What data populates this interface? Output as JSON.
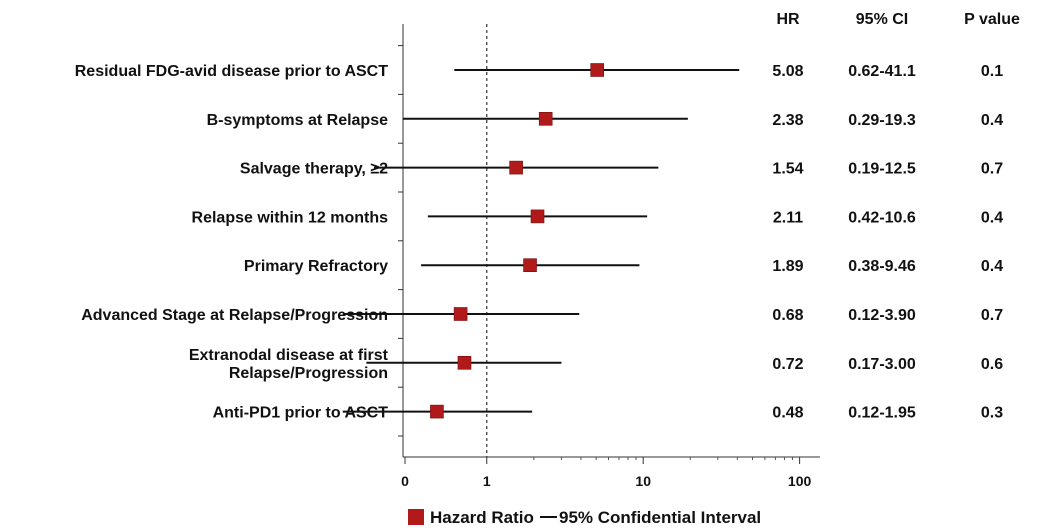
{
  "chart_data": {
    "type": "forest",
    "title": "",
    "xlabel": "",
    "x_scale": "log",
    "xlim": [
      0.3,
      120
    ],
    "x_ticks": [
      {
        "value": 0.3,
        "label": "0"
      },
      {
        "value": 1,
        "label": "1"
      },
      {
        "value": 10,
        "label": "10"
      },
      {
        "value": 100,
        "label": "100"
      }
    ],
    "reference_line": 1,
    "column_headers": {
      "hr": "HR",
      "ci": "95%  CI",
      "p": "P value"
    },
    "rows": [
      {
        "label": [
          "Residual FDG-avid disease prior to ASCT"
        ],
        "hr": 5.08,
        "ci_low": 0.62,
        "ci_high": 41.1,
        "hr_text": "5.08",
        "ci_text": "0.62-41.1",
        "p_text": "0.1"
      },
      {
        "label": [
          "B-symptoms at Relapse"
        ],
        "hr": 2.38,
        "ci_low": 0.29,
        "ci_high": 19.3,
        "hr_text": "2.38",
        "ci_text": "0.29-19.3",
        "p_text": "0.4"
      },
      {
        "label": [
          "Salvage therapy, ≥2"
        ],
        "hr": 1.54,
        "ci_low": 0.19,
        "ci_high": 12.5,
        "hr_text": "1.54",
        "ci_text": "0.19-12.5",
        "p_text": "0.7"
      },
      {
        "label": [
          "Relapse within 12 months"
        ],
        "hr": 2.11,
        "ci_low": 0.42,
        "ci_high": 10.6,
        "hr_text": "2.11",
        "ci_text": "0.42-10.6",
        "p_text": "0.4"
      },
      {
        "label": [
          "Primary Refractory"
        ],
        "hr": 1.89,
        "ci_low": 0.38,
        "ci_high": 9.46,
        "hr_text": "1.89",
        "ci_text": "0.38-9.46",
        "p_text": "0.4"
      },
      {
        "label": [
          "Advanced Stage at Relapse/Progression"
        ],
        "hr": 0.68,
        "ci_low": 0.12,
        "ci_high": 3.9,
        "hr_text": "0.68",
        "ci_text": "0.12-3.90",
        "p_text": "0.7"
      },
      {
        "label": [
          "Extranodal disease at first",
          "Relapse/Progression"
        ],
        "hr": 0.72,
        "ci_low": 0.17,
        "ci_high": 3.0,
        "hr_text": "0.72",
        "ci_text": "0.17-3.00",
        "p_text": "0.6"
      },
      {
        "label": [
          "Anti-PD1 prior to ASCT"
        ],
        "hr": 0.48,
        "ci_low": 0.12,
        "ci_high": 1.95,
        "hr_text": "0.48",
        "ci_text": "0.12-1.95",
        "p_text": "0.3"
      }
    ],
    "legend": {
      "marker_label": "Hazard Ratio",
      "line_label": "95% Confidential Interval",
      "position": "bottom-center"
    },
    "colors": {
      "marker": "#b01a1a",
      "line": "#111111"
    }
  }
}
